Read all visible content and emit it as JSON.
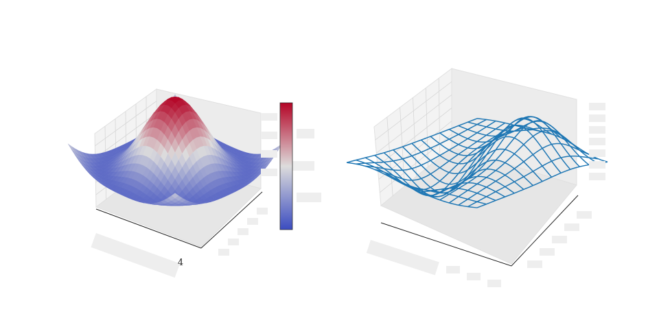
{
  "annotation": "4"
}
